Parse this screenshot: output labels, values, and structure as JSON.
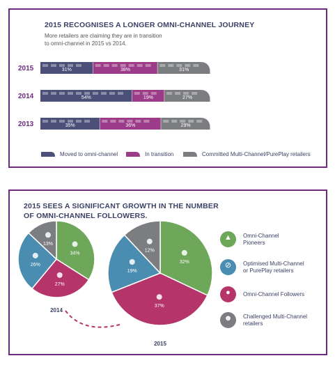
{
  "colors": {
    "moved": "#4b5079",
    "transition": "#9c3c88",
    "committed": "#7c7d80",
    "pioneers": "#6ea65a",
    "optimised": "#4a8db0",
    "followers": "#b5356b",
    "challenged": "#7c7d80",
    "frame": "#6e2a7e"
  },
  "panel1": {
    "title": "2015 RECOGNISES A LONGER OMNI-CHANNEL JOURNEY",
    "subtitle_l1": "More retailers are claiming they are in transition",
    "subtitle_l2": "to omni-channel in 2015 vs 2014.",
    "legend": [
      "Moved to omni-channel",
      "In transition",
      "Committed Multi-Channel/PurePlay retailers"
    ]
  },
  "panel2": {
    "title_l1": "2015 SEES A SIGNIFICANT GROWTH IN THE NUMBER",
    "title_l2": "OF OMNI-CHANNEL FOLLOWERS.",
    "legend": [
      {
        "l1": "Omni-Channel",
        "l2": "Pioneers",
        "icon": "mountain-flag-icon"
      },
      {
        "l1": "Optimised Multi-Channel",
        "l2": "or PurePlay retailers",
        "icon": "compass-icon"
      },
      {
        "l1": "Omni-Channel Followers",
        "l2": "",
        "icon": "crowd-icon"
      },
      {
        "l1": "Challenged Multi-Channel",
        "l2": "retailers",
        "icon": "head-lightbulb-icon"
      }
    ]
  },
  "chart_data": [
    {
      "type": "bar",
      "orientation": "horizontal-stacked",
      "title": "2015 RECOGNISES A LONGER OMNI-CHANNEL JOURNEY",
      "categories": [
        "2015",
        "2014",
        "2013"
      ],
      "series": [
        {
          "name": "Moved to omni-channel",
          "values": [
            31,
            54,
            35
          ],
          "labels": [
            "31%",
            "54%",
            "35%"
          ]
        },
        {
          "name": "In transition",
          "values": [
            38,
            19,
            36
          ],
          "labels": [
            "38%",
            "19%",
            "36%"
          ]
        },
        {
          "name": "Committed Multi-Channel/PurePlay retailers",
          "values": [
            31,
            27,
            29
          ],
          "labels": [
            "31%",
            "27%",
            "29%"
          ]
        }
      ]
    },
    {
      "type": "pie",
      "label": "2014",
      "slices": [
        {
          "name": "Omni-Channel Pioneers",
          "value": 34,
          "label": "34%"
        },
        {
          "name": "Omni-Channel Followers",
          "value": 27,
          "label": "27%"
        },
        {
          "name": "Optimised Multi-Channel or PurePlay retailers",
          "value": 26,
          "label": "26%"
        },
        {
          "name": "Challenged Multi-Channel retailers",
          "value": 13,
          "label": "13%"
        }
      ]
    },
    {
      "type": "pie",
      "label": "2015",
      "slices": [
        {
          "name": "Omni-Channel Pioneers",
          "value": 32,
          "label": "32%"
        },
        {
          "name": "Omni-Channel Followers",
          "value": 37,
          "label": "37%"
        },
        {
          "name": "Optimised Multi-Channel or PurePlay retailers",
          "value": 19,
          "label": "19%"
        },
        {
          "name": "Challenged Multi-Channel retailers",
          "value": 12,
          "label": "12%"
        }
      ]
    }
  ]
}
